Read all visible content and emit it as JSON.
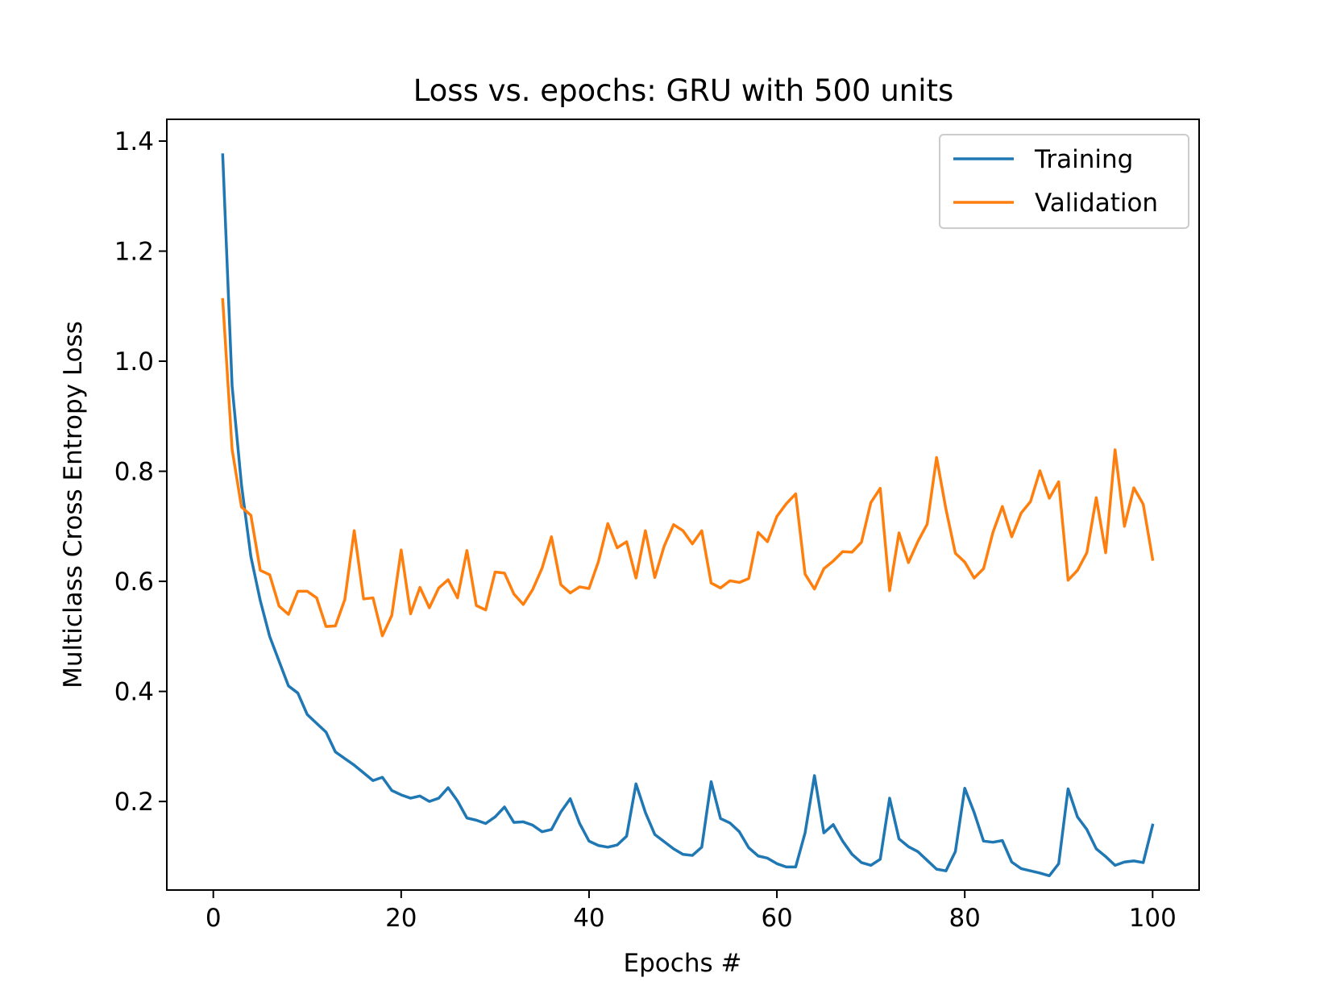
{
  "chart_data": {
    "type": "line",
    "title": "Loss vs. epochs: GRU with 500 units",
    "xlabel": "Epochs #",
    "ylabel": "Multiclass Cross Entropy Loss",
    "xlim": [
      -4.95,
      104.95
    ],
    "ylim": [
      0.0391,
      1.4395
    ],
    "xticks": [
      0,
      20,
      40,
      60,
      80,
      100
    ],
    "yticks": [
      0.2,
      0.4,
      0.6,
      0.8,
      1.0,
      1.2,
      1.4
    ],
    "xtick_labels": [
      "0",
      "20",
      "40",
      "60",
      "80",
      "100"
    ],
    "ytick_labels": [
      "0.2",
      "0.4",
      "0.6",
      "0.8",
      "1.0",
      "1.2",
      "1.4"
    ],
    "grid": false,
    "legend_position": "top-right",
    "series": [
      {
        "name": "Training",
        "color": "#1f77b4",
        "x": [
          1,
          2,
          3,
          4,
          5,
          6,
          7,
          8,
          9,
          10,
          11,
          12,
          13,
          14,
          15,
          16,
          17,
          18,
          19,
          20,
          21,
          22,
          23,
          24,
          25,
          26,
          27,
          28,
          29,
          30,
          31,
          32,
          33,
          34,
          35,
          36,
          37,
          38,
          39,
          40,
          41,
          42,
          43,
          44,
          45,
          46,
          47,
          48,
          49,
          50,
          51,
          52,
          53,
          54,
          55,
          56,
          57,
          58,
          59,
          60,
          61,
          62,
          63,
          64,
          65,
          66,
          67,
          68,
          69,
          70,
          71,
          72,
          73,
          74,
          75,
          76,
          77,
          78,
          79,
          80,
          81,
          82,
          83,
          84,
          85,
          86,
          87,
          88,
          89,
          90,
          91,
          92,
          93,
          94,
          95,
          96,
          97,
          98,
          99,
          100
        ],
        "values": [
          1.375,
          0.955,
          0.775,
          0.645,
          0.565,
          0.5,
          0.455,
          0.41,
          0.397,
          0.358,
          0.342,
          0.326,
          0.29,
          0.278,
          0.266,
          0.252,
          0.238,
          0.244,
          0.22,
          0.212,
          0.206,
          0.21,
          0.2,
          0.206,
          0.225,
          0.201,
          0.17,
          0.166,
          0.16,
          0.172,
          0.19,
          0.162,
          0.163,
          0.157,
          0.145,
          0.149,
          0.181,
          0.205,
          0.16,
          0.128,
          0.12,
          0.117,
          0.121,
          0.137,
          0.232,
          0.18,
          0.14,
          0.127,
          0.114,
          0.104,
          0.102,
          0.117,
          0.236,
          0.169,
          0.161,
          0.145,
          0.116,
          0.101,
          0.097,
          0.087,
          0.081,
          0.081,
          0.143,
          0.247,
          0.143,
          0.158,
          0.128,
          0.104,
          0.089,
          0.084,
          0.095,
          0.206,
          0.132,
          0.118,
          0.109,
          0.093,
          0.077,
          0.074,
          0.109,
          0.224,
          0.18,
          0.128,
          0.126,
          0.129,
          0.09,
          0.078,
          0.074,
          0.07,
          0.065,
          0.087,
          0.223,
          0.172,
          0.149,
          0.114,
          0.1,
          0.084,
          0.09,
          0.092,
          0.089,
          0.157
        ]
      },
      {
        "name": "Validation",
        "color": "#ff7f0e",
        "x": [
          1,
          2,
          3,
          4,
          5,
          6,
          7,
          8,
          9,
          10,
          11,
          12,
          13,
          14,
          15,
          16,
          17,
          18,
          19,
          20,
          21,
          22,
          23,
          24,
          25,
          26,
          27,
          28,
          29,
          30,
          31,
          32,
          33,
          34,
          35,
          36,
          37,
          38,
          39,
          40,
          41,
          42,
          43,
          44,
          45,
          46,
          47,
          48,
          49,
          50,
          51,
          52,
          53,
          54,
          55,
          56,
          57,
          58,
          59,
          60,
          61,
          62,
          63,
          64,
          65,
          66,
          67,
          68,
          69,
          70,
          71,
          72,
          73,
          74,
          75,
          76,
          77,
          78,
          79,
          80,
          81,
          82,
          83,
          84,
          85,
          86,
          87,
          88,
          89,
          90,
          91,
          92,
          93,
          94,
          95,
          96,
          97,
          98,
          99,
          100
        ],
        "values": [
          1.112,
          0.84,
          0.735,
          0.72,
          0.62,
          0.612,
          0.555,
          0.54,
          0.582,
          0.582,
          0.57,
          0.518,
          0.519,
          0.567,
          0.692,
          0.568,
          0.57,
          0.501,
          0.538,
          0.657,
          0.541,
          0.589,
          0.552,
          0.588,
          0.603,
          0.57,
          0.656,
          0.556,
          0.548,
          0.617,
          0.615,
          0.577,
          0.558,
          0.585,
          0.624,
          0.681,
          0.594,
          0.579,
          0.59,
          0.587,
          0.636,
          0.705,
          0.661,
          0.672,
          0.606,
          0.692,
          0.607,
          0.664,
          0.703,
          0.692,
          0.668,
          0.692,
          0.597,
          0.588,
          0.601,
          0.598,
          0.605,
          0.689,
          0.672,
          0.718,
          0.741,
          0.759,
          0.613,
          0.586,
          0.623,
          0.637,
          0.654,
          0.653,
          0.671,
          0.743,
          0.769,
          0.583,
          0.688,
          0.634,
          0.672,
          0.704,
          0.825,
          0.731,
          0.651,
          0.635,
          0.606,
          0.623,
          0.689,
          0.736,
          0.681,
          0.724,
          0.745,
          0.801,
          0.751,
          0.781,
          0.602,
          0.62,
          0.652,
          0.752,
          0.652,
          0.839,
          0.7,
          0.77,
          0.74,
          0.64
        ]
      }
    ]
  }
}
